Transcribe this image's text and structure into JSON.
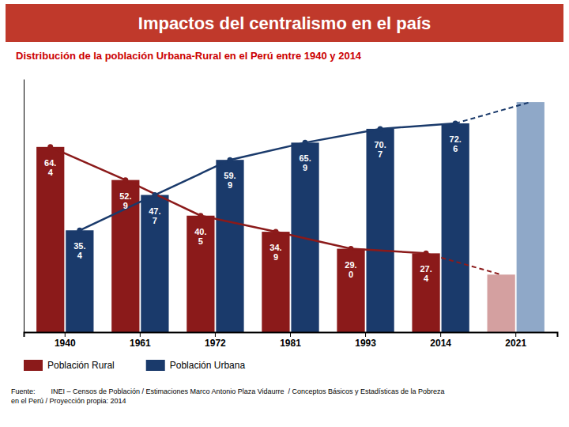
{
  "chart_data": {
    "type": "bar",
    "title": "Impactos del centralismo en el país",
    "subtitle": "Distribución de la población Urbana-Rural en el Perú entre 1940 y 2014",
    "source": "Fuente:        INEI – Censos de Población / Estimaciones Marco Antonio Plaza Vidaurre  / Conceptos Básicos y Estadísticas de la Pobreza\nen el Perú / Proyección propia: 2014",
    "categories": [
      "1940",
      "1961",
      "1972",
      "1981",
      "1993",
      "2014",
      "2021"
    ],
    "series": [
      {
        "name": "Población Rural",
        "color": "#8b1a1a",
        "colors": [
          "#8b1a1a",
          "#8b1a1a",
          "#8b1a1a",
          "#8b1a1a",
          "#8b1a1a",
          "#8b1a1a",
          "#d4a0a0"
        ],
        "values": [
          64.4,
          52.9,
          40.5,
          34.9,
          29.0,
          27.4,
          20.0
        ],
        "value_labels": [
          "64.\n4",
          "52.\n9",
          "40.\n5",
          "34.\n9",
          "29.\n0",
          "27.\n4",
          null
        ],
        "marker": "circle",
        "line_style": "solid"
      },
      {
        "name": "Población Urbana",
        "color": "#1a3a6b",
        "colors": [
          "#1a3a6b",
          "#1a3a6b",
          "#1a3a6b",
          "#1a3a6b",
          "#1a3a6b",
          "#1a3a6b",
          "#8fa8c8"
        ],
        "values": [
          35.4,
          47.7,
          59.9,
          65.9,
          70.7,
          72.6,
          80.0
        ],
        "value_labels": [
          "35.\n4",
          "47.\n7",
          "59.\n9",
          "65.\n9",
          "70.\n7",
          "72.\n6",
          null
        ],
        "marker": "circle",
        "line_style": "solid"
      }
    ],
    "ylim": [
      0,
      88
    ],
    "tick_labels": "x",
    "data_labels": true,
    "grid": false,
    "legend": "bottom left"
  }
}
